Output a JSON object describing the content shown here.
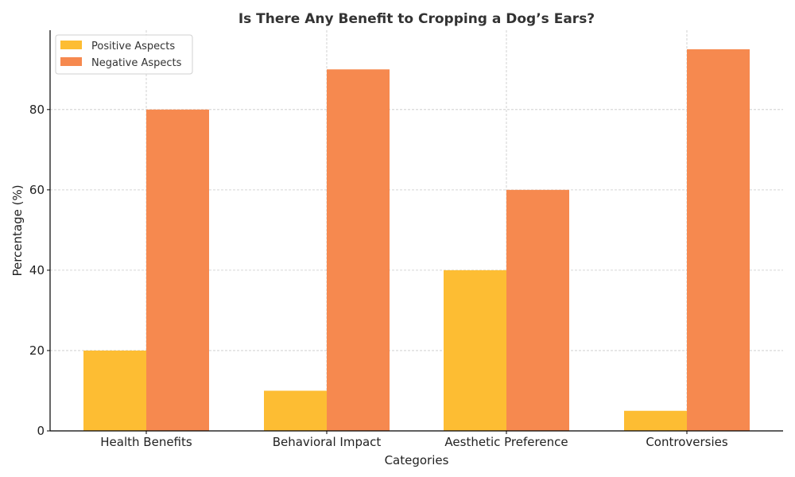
{
  "chart_data": {
    "type": "bar",
    "title": "Is There Any Benefit to Cropping a Dog’s Ears?",
    "xlabel": "Categories",
    "ylabel": "Percentage (%)",
    "categories": [
      "Health Benefits",
      "Behavioral Impact",
      "Aesthetic Preference",
      "Controversies"
    ],
    "series": [
      {
        "name": "Positive Aspects",
        "values": [
          20,
          10,
          40,
          5
        ],
        "color": "#fdbd33"
      },
      {
        "name": "Negative Aspects",
        "values": [
          80,
          90,
          60,
          95
        ],
        "color": "#f6894f"
      }
    ],
    "ylim": [
      0,
      99.75
    ],
    "yticks": [
      0,
      20,
      40,
      60,
      80
    ],
    "grid": true,
    "legend": "top-left"
  }
}
